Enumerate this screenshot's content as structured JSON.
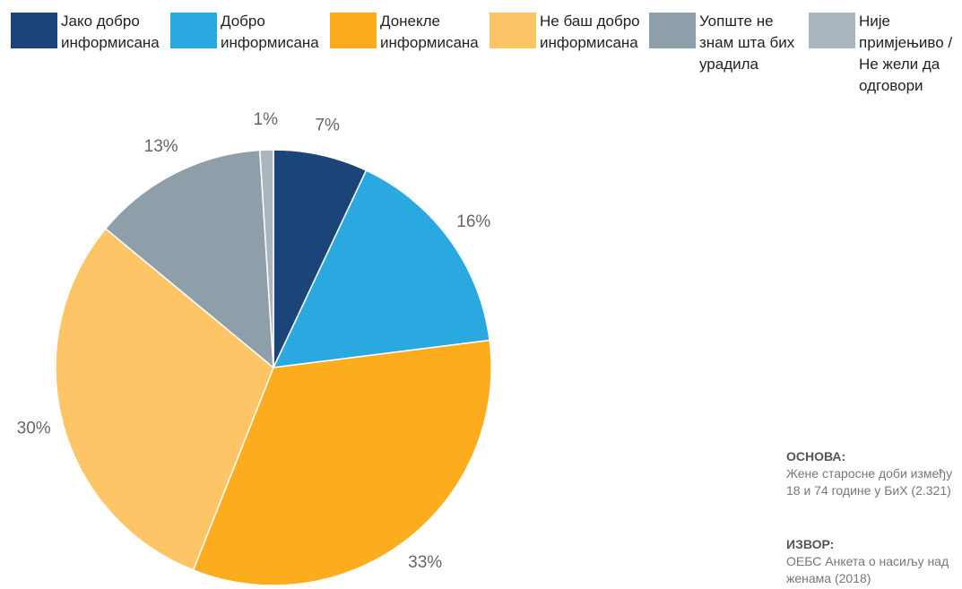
{
  "chart_data": {
    "type": "pie",
    "categories": [
      "Јако добро информисана",
      "Добро информисана",
      "Донекле информисана",
      "Не баш добро информисана",
      "Уопште не знам шта бих урадила",
      "Није примјењиво / Не жели да одговори"
    ],
    "values": [
      7,
      16,
      33,
      30,
      13,
      1
    ],
    "value_labels": [
      "7%",
      "16%",
      "33%",
      "30%",
      "13%",
      "1%"
    ],
    "colors": [
      "#1b4479",
      "#2aa9e1",
      "#fbad1e",
      "#fec566",
      "#8e9fa9",
      "#a9b6be"
    ],
    "annotations": [
      {
        "heading": "ОСНОВА:",
        "text": "Жене старосне доби између 18 и 74 године у БиХ (2.321)"
      },
      {
        "heading": "ИЗВОР:",
        "text": "ОЕБС Анкета о насиљу над женама (2018)"
      }
    ]
  }
}
